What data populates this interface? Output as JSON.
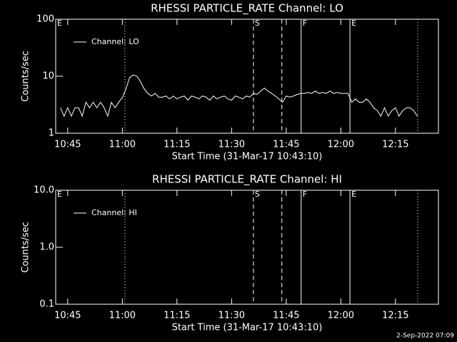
{
  "chart_data": [
    {
      "type": "line",
      "title": "RHESSI PARTICLE_RATE Channel: LO",
      "ylabel": "Counts/sec",
      "xlabel": "Start Time (31-Mar-17 10:43:10)",
      "log_y": true,
      "ylim": [
        1,
        100
      ],
      "yticks": [
        1,
        10,
        100
      ],
      "xlim": [
        641.7,
        746.8
      ],
      "xticks": [
        {
          "value": 645,
          "label": "10:45"
        },
        {
          "value": 660,
          "label": "11:00"
        },
        {
          "value": 675,
          "label": "11:15"
        },
        {
          "value": 690,
          "label": "11:30"
        },
        {
          "value": 705,
          "label": "11:45"
        },
        {
          "value": 720,
          "label": "12:00"
        },
        {
          "value": 735,
          "label": "12:15"
        }
      ],
      "legend": "top-left",
      "events": [
        {
          "x": 641.7,
          "label": "E",
          "style": "solid"
        },
        {
          "x": 660.7,
          "label": null,
          "style": "dotted"
        },
        {
          "x": 696,
          "label": "S",
          "style": "dashed"
        },
        {
          "x": 703.8,
          "label": null,
          "style": "dashed"
        },
        {
          "x": 709.1,
          "label": "F",
          "style": "solid"
        },
        {
          "x": 722.5,
          "label": "E",
          "style": "solid"
        },
        {
          "x": 741.1,
          "label": null,
          "style": "dotted"
        }
      ],
      "series": [
        {
          "name": "Channel: LO",
          "color": "#ffffff",
          "x": [
            643,
            644,
            645,
            646,
            647,
            648,
            649,
            650,
            651,
            652,
            653,
            654,
            655,
            656,
            657,
            658,
            659,
            660,
            661,
            662,
            663,
            664,
            665,
            666,
            667,
            668,
            669,
            670,
            671,
            672,
            673,
            674,
            675,
            676,
            677,
            678,
            679,
            680,
            681,
            682,
            683,
            684,
            685,
            686,
            687,
            688,
            689,
            690,
            691,
            692,
            693,
            694,
            695,
            696,
            697,
            698,
            699,
            700,
            701,
            702,
            703,
            704,
            705,
            706,
            707,
            708,
            709,
            710,
            711,
            712,
            713,
            714,
            715,
            716,
            717,
            718,
            719,
            720,
            721,
            722,
            723,
            724,
            725,
            726,
            727,
            728,
            729,
            730,
            731,
            732,
            733,
            734,
            735,
            736,
            737,
            738,
            739,
            740,
            741
          ],
          "values": [
            2.8,
            2,
            2.8,
            2,
            2.8,
            2.8,
            2,
            3.5,
            2.8,
            3.5,
            2.8,
            3.5,
            2.8,
            2,
            3.5,
            2.8,
            3.5,
            4.2,
            6,
            9.5,
            10.5,
            10,
            8,
            6,
            5,
            4.5,
            5,
            4.3,
            4.3,
            4.5,
            4,
            4.5,
            4,
            4.3,
            4.5,
            3.8,
            4.5,
            4.3,
            4,
            4.5,
            4.3,
            3.8,
            4.5,
            4,
            4.3,
            4.5,
            4,
            3.8,
            4.5,
            4.3,
            4,
            4.5,
            4.3,
            5,
            4.8,
            5.5,
            6.2,
            5.5,
            5,
            4.5,
            4,
            3.5,
            4.5,
            4.3,
            4.5,
            4.8,
            5,
            5,
            5.2,
            5,
            5.5,
            5,
            5.2,
            5,
            5.5,
            5,
            5.2,
            5,
            5,
            5,
            3.5,
            4,
            3.5,
            3.5,
            4,
            3.5,
            2.8,
            2.5,
            2,
            2.8,
            2,
            2.5,
            2.8,
            2,
            2.5,
            2.8,
            2.8,
            2.5,
            2
          ]
        }
      ]
    },
    {
      "type": "line",
      "title": "RHESSI PARTICLE_RATE Channel: HI",
      "ylabel": "Counts/sec",
      "xlabel": "Start Time (31-Mar-17 10:43:10)",
      "log_y": true,
      "ylim": [
        0.1,
        10
      ],
      "yticks": [
        0.1,
        {
          "value": 1,
          "label": "1.0"
        },
        {
          "value": 10,
          "label": "10.0"
        }
      ],
      "xlim": [
        641.7,
        746.8
      ],
      "xticks": [
        {
          "value": 645,
          "label": "10:45"
        },
        {
          "value": 660,
          "label": "11:00"
        },
        {
          "value": 675,
          "label": "11:15"
        },
        {
          "value": 690,
          "label": "11:30"
        },
        {
          "value": 705,
          "label": "11:45"
        },
        {
          "value": 720,
          "label": "12:00"
        },
        {
          "value": 735,
          "label": "12:15"
        }
      ],
      "legend": "top-left",
      "events": [
        {
          "x": 641.7,
          "label": "E",
          "style": "solid"
        },
        {
          "x": 660.7,
          "label": null,
          "style": "dotted"
        },
        {
          "x": 696,
          "label": "S",
          "style": "dashed"
        },
        {
          "x": 703.8,
          "label": null,
          "style": "dashed"
        },
        {
          "x": 709.1,
          "label": "F",
          "style": "solid"
        },
        {
          "x": 722.5,
          "label": "E",
          "style": "solid"
        },
        {
          "x": 741.1,
          "label": null,
          "style": "dotted"
        }
      ],
      "series": [
        {
          "name": "Channel: HI",
          "color": "#ffffff",
          "x": [],
          "values": []
        }
      ]
    }
  ],
  "footer": "2-Sep-2022 07:09"
}
